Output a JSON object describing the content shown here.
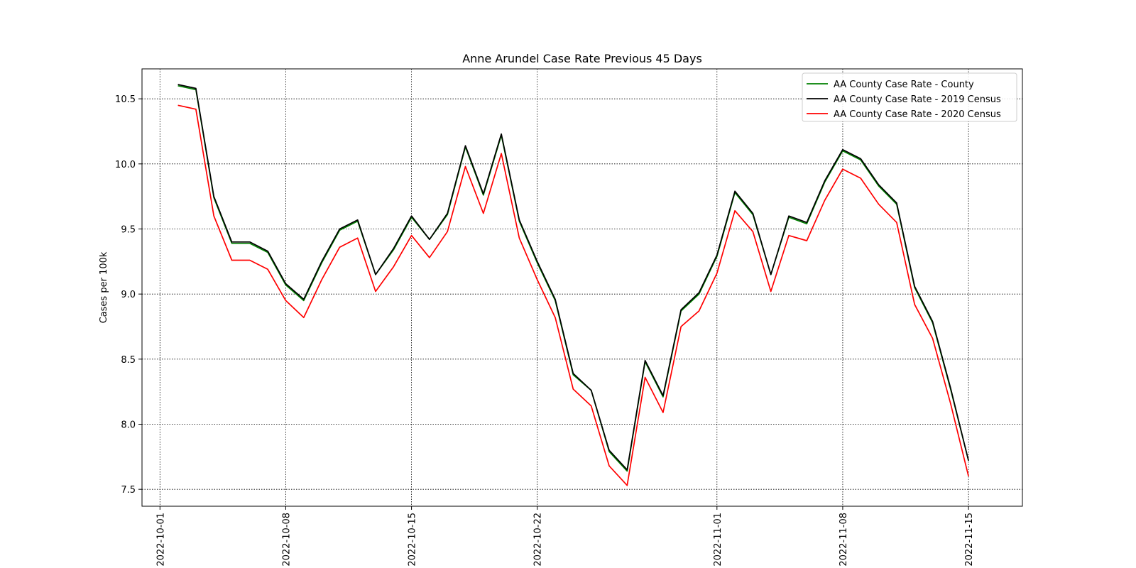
{
  "chart_data": {
    "type": "line",
    "title": "Anne Arundel Case Rate Previous 45 Days",
    "xlabel": "",
    "ylabel": "Cases per 100k",
    "xlim": [
      "2022-09-30",
      "2022-11-18"
    ],
    "ylim": [
      7.37,
      10.73
    ],
    "x_ticks": [
      "2022-10-01",
      "2022-10-08",
      "2022-10-15",
      "2022-10-22",
      "2022-11-01",
      "2022-11-08",
      "2022-11-15"
    ],
    "y_ticks": [
      7.5,
      8.0,
      8.5,
      9.0,
      9.5,
      10.0,
      10.5
    ],
    "grid": true,
    "legend_position": "top-right",
    "x": [
      "2022-10-02",
      "2022-10-03",
      "2022-10-04",
      "2022-10-05",
      "2022-10-06",
      "2022-10-07",
      "2022-10-08",
      "2022-10-09",
      "2022-10-10",
      "2022-10-11",
      "2022-10-12",
      "2022-10-13",
      "2022-10-14",
      "2022-10-15",
      "2022-10-16",
      "2022-10-17",
      "2022-10-18",
      "2022-10-19",
      "2022-10-20",
      "2022-10-21",
      "2022-10-22",
      "2022-10-23",
      "2022-10-24",
      "2022-10-25",
      "2022-10-26",
      "2022-10-27",
      "2022-10-28",
      "2022-10-29",
      "2022-10-30",
      "2022-10-31",
      "2022-11-01",
      "2022-11-02",
      "2022-11-03",
      "2022-11-04",
      "2022-11-05",
      "2022-11-06",
      "2022-11-07",
      "2022-11-08",
      "2022-11-09",
      "2022-11-10",
      "2022-11-11",
      "2022-11-12",
      "2022-11-13",
      "2022-11-14",
      "2022-11-15"
    ],
    "series": [
      {
        "name": "AA County Case Rate - County",
        "color": "#008000",
        "values": [
          10.6,
          10.57,
          9.74,
          9.39,
          9.39,
          9.32,
          9.07,
          8.95,
          9.24,
          9.49,
          9.56,
          9.15,
          9.34,
          9.59,
          9.42,
          9.61,
          10.13,
          9.76,
          10.22,
          9.56,
          9.24,
          8.95,
          8.38,
          8.26,
          7.79,
          7.64,
          8.48,
          8.21,
          8.87,
          9.0,
          9.29,
          9.78,
          9.61,
          9.15,
          9.59,
          9.54,
          9.86,
          10.1,
          10.03,
          9.83,
          9.69,
          9.05,
          8.78,
          8.27,
          7.72
        ]
      },
      {
        "name": "AA County Case Rate - 2019 Census",
        "color": "#000000",
        "values": [
          10.61,
          10.58,
          9.75,
          9.4,
          9.4,
          9.33,
          9.08,
          8.96,
          9.25,
          9.5,
          9.57,
          9.15,
          9.35,
          9.6,
          9.42,
          9.62,
          10.14,
          9.77,
          10.23,
          9.57,
          9.25,
          8.96,
          8.39,
          8.26,
          7.8,
          7.65,
          8.49,
          8.22,
          8.88,
          9.01,
          9.3,
          9.79,
          9.62,
          9.15,
          9.6,
          9.55,
          9.87,
          10.11,
          10.04,
          9.84,
          9.7,
          9.06,
          8.79,
          8.28,
          7.72
        ]
      },
      {
        "name": "AA County Case Rate - 2020 Census",
        "color": "#ff0000",
        "values": [
          10.45,
          10.42,
          9.6,
          9.26,
          9.26,
          9.19,
          8.95,
          8.82,
          9.11,
          9.36,
          9.43,
          9.02,
          9.21,
          9.45,
          9.28,
          9.48,
          9.98,
          9.62,
          10.08,
          9.43,
          9.11,
          8.82,
          8.27,
          8.14,
          7.68,
          7.53,
          8.36,
          8.09,
          8.75,
          8.87,
          9.16,
          9.64,
          9.48,
          9.02,
          9.45,
          9.41,
          9.72,
          9.96,
          9.89,
          9.69,
          9.55,
          8.92,
          8.66,
          8.16,
          7.6
        ]
      }
    ]
  }
}
